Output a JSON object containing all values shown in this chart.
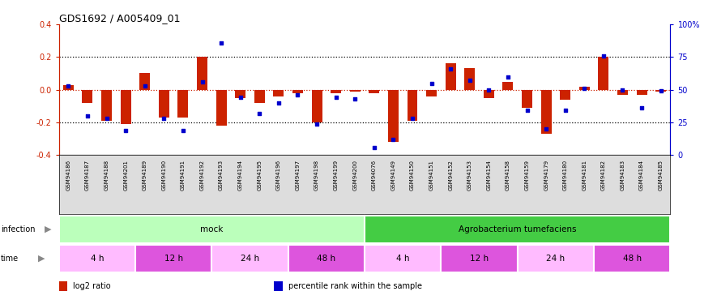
{
  "title": "GDS1692 / A005409_01",
  "samples": [
    "GSM94186",
    "GSM94187",
    "GSM94188",
    "GSM94201",
    "GSM94189",
    "GSM94190",
    "GSM94191",
    "GSM94192",
    "GSM94193",
    "GSM94194",
    "GSM94195",
    "GSM94196",
    "GSM94197",
    "GSM94198",
    "GSM94199",
    "GSM94200",
    "GSM94076",
    "GSM94149",
    "GSM94150",
    "GSM94151",
    "GSM94152",
    "GSM94153",
    "GSM94154",
    "GSM94158",
    "GSM94159",
    "GSM94179",
    "GSM94180",
    "GSM94181",
    "GSM94182",
    "GSM94183",
    "GSM94184",
    "GSM94185"
  ],
  "log2ratio": [
    0.03,
    -0.08,
    -0.19,
    -0.21,
    0.1,
    -0.17,
    -0.17,
    0.2,
    -0.22,
    -0.05,
    -0.08,
    -0.04,
    -0.02,
    -0.2,
    -0.02,
    -0.01,
    -0.02,
    -0.32,
    -0.19,
    -0.04,
    0.16,
    0.13,
    -0.05,
    0.05,
    -0.11,
    -0.27,
    -0.06,
    0.02,
    0.2,
    -0.03,
    -0.03,
    -0.01
  ],
  "percentile": [
    53,
    30,
    28,
    19,
    53,
    28,
    19,
    56,
    86,
    44,
    32,
    40,
    46,
    24,
    44,
    43,
    6,
    12,
    28,
    55,
    66,
    57,
    50,
    60,
    34,
    20,
    34,
    51,
    76,
    50,
    36,
    49
  ],
  "infection_groups": [
    {
      "label": "mock",
      "start": 0,
      "end": 16,
      "color": "#bbffbb"
    },
    {
      "label": "Agrobacterium tumefaciens",
      "start": 16,
      "end": 32,
      "color": "#44cc44"
    }
  ],
  "time_groups": [
    {
      "label": "4 h",
      "start": 0,
      "end": 4,
      "color": "#ffbbff"
    },
    {
      "label": "12 h",
      "start": 4,
      "end": 8,
      "color": "#dd55dd"
    },
    {
      "label": "24 h",
      "start": 8,
      "end": 12,
      "color": "#ffbbff"
    },
    {
      "label": "48 h",
      "start": 12,
      "end": 16,
      "color": "#dd55dd"
    },
    {
      "label": "4 h",
      "start": 16,
      "end": 20,
      "color": "#ffbbff"
    },
    {
      "label": "12 h",
      "start": 20,
      "end": 24,
      "color": "#dd55dd"
    },
    {
      "label": "24 h",
      "start": 24,
      "end": 28,
      "color": "#ffbbff"
    },
    {
      "label": "48 h",
      "start": 28,
      "end": 32,
      "color": "#dd55dd"
    }
  ],
  "bar_color": "#cc2200",
  "dot_color": "#0000cc",
  "ylim_left": [
    -0.4,
    0.4
  ],
  "ylim_right": [
    0,
    100
  ],
  "yticks_left": [
    -0.4,
    -0.2,
    0.0,
    0.2,
    0.4
  ],
  "yticks_right": [
    0,
    25,
    50,
    75,
    100
  ],
  "hlines_dotted": [
    -0.2,
    0.2
  ],
  "zero_line_color": "#cc2200",
  "legend_items": [
    {
      "label": "log2 ratio",
      "color": "#cc2200"
    },
    {
      "label": "percentile rank within the sample",
      "color": "#0000cc"
    }
  ],
  "label_left_color": "#888888",
  "xtick_bg": "#dddddd"
}
